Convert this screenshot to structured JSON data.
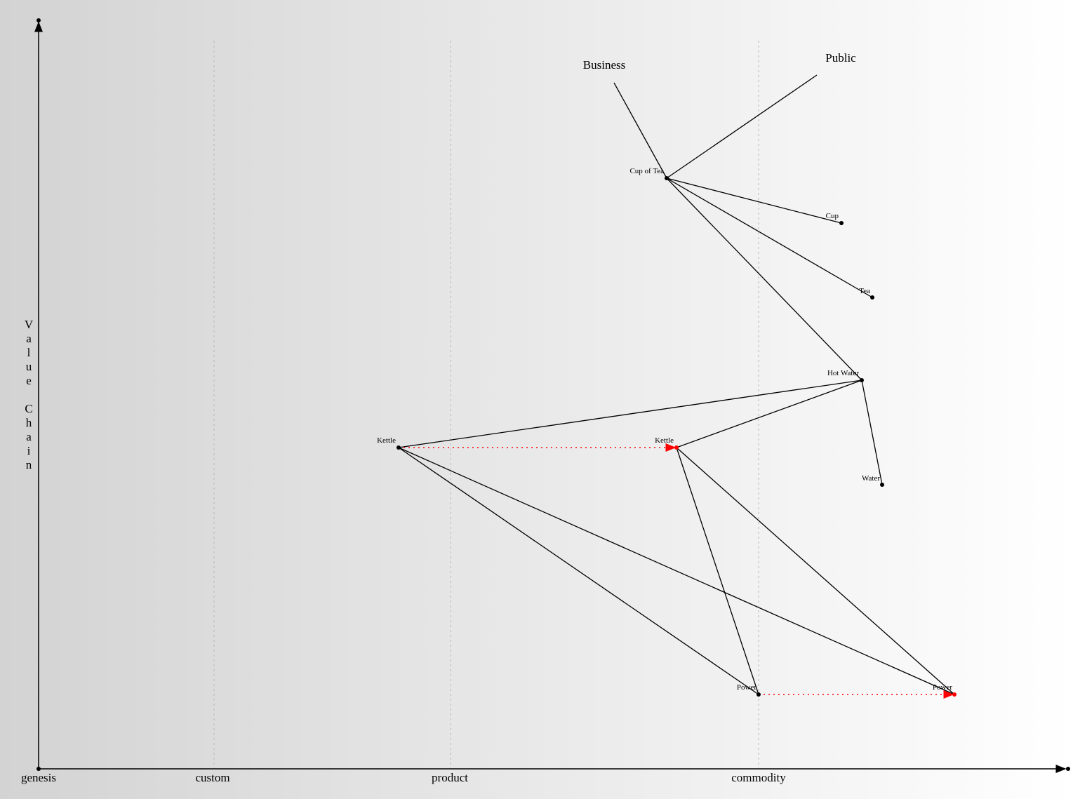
{
  "axes": {
    "y_label": "Value Chain",
    "x_stages": [
      "genesis",
      "custom",
      "product",
      "commodity"
    ]
  },
  "anchors": [
    {
      "id": "business",
      "label": "Business"
    },
    {
      "id": "public",
      "label": "Public"
    }
  ],
  "components": [
    {
      "id": "cup-of-tea",
      "label": "Cup of Tea"
    },
    {
      "id": "cup",
      "label": "Cup"
    },
    {
      "id": "tea",
      "label": "Tea"
    },
    {
      "id": "hot-water",
      "label": "Hot Water"
    },
    {
      "id": "water",
      "label": "Water"
    },
    {
      "id": "kettle",
      "label": "Kettle"
    },
    {
      "id": "kettle-evolved",
      "label": "Kettle",
      "evolved": true
    },
    {
      "id": "power",
      "label": "Power"
    },
    {
      "id": "power-evolved",
      "label": "Power",
      "evolved": true
    }
  ],
  "links": [
    [
      "business",
      "cup-of-tea"
    ],
    [
      "public",
      "cup-of-tea"
    ],
    [
      "cup-of-tea",
      "cup"
    ],
    [
      "cup-of-tea",
      "tea"
    ],
    [
      "cup-of-tea",
      "hot-water"
    ],
    [
      "hot-water",
      "water"
    ],
    [
      "hot-water",
      "kettle"
    ],
    [
      "hot-water",
      "kettle-evolved"
    ],
    [
      "kettle",
      "power"
    ],
    [
      "kettle",
      "power-evolved"
    ],
    [
      "kettle-evolved",
      "power"
    ],
    [
      "kettle-evolved",
      "power-evolved"
    ]
  ],
  "evolutions": [
    [
      "kettle",
      "kettle-evolved"
    ],
    [
      "power",
      "power-evolved"
    ]
  ],
  "colors": {
    "background_left": "#d3d3d3",
    "background_right": "#ffffff",
    "line": "#000000",
    "evolution": "#ff0000",
    "stage_divider": "#b8b8b8"
  }
}
